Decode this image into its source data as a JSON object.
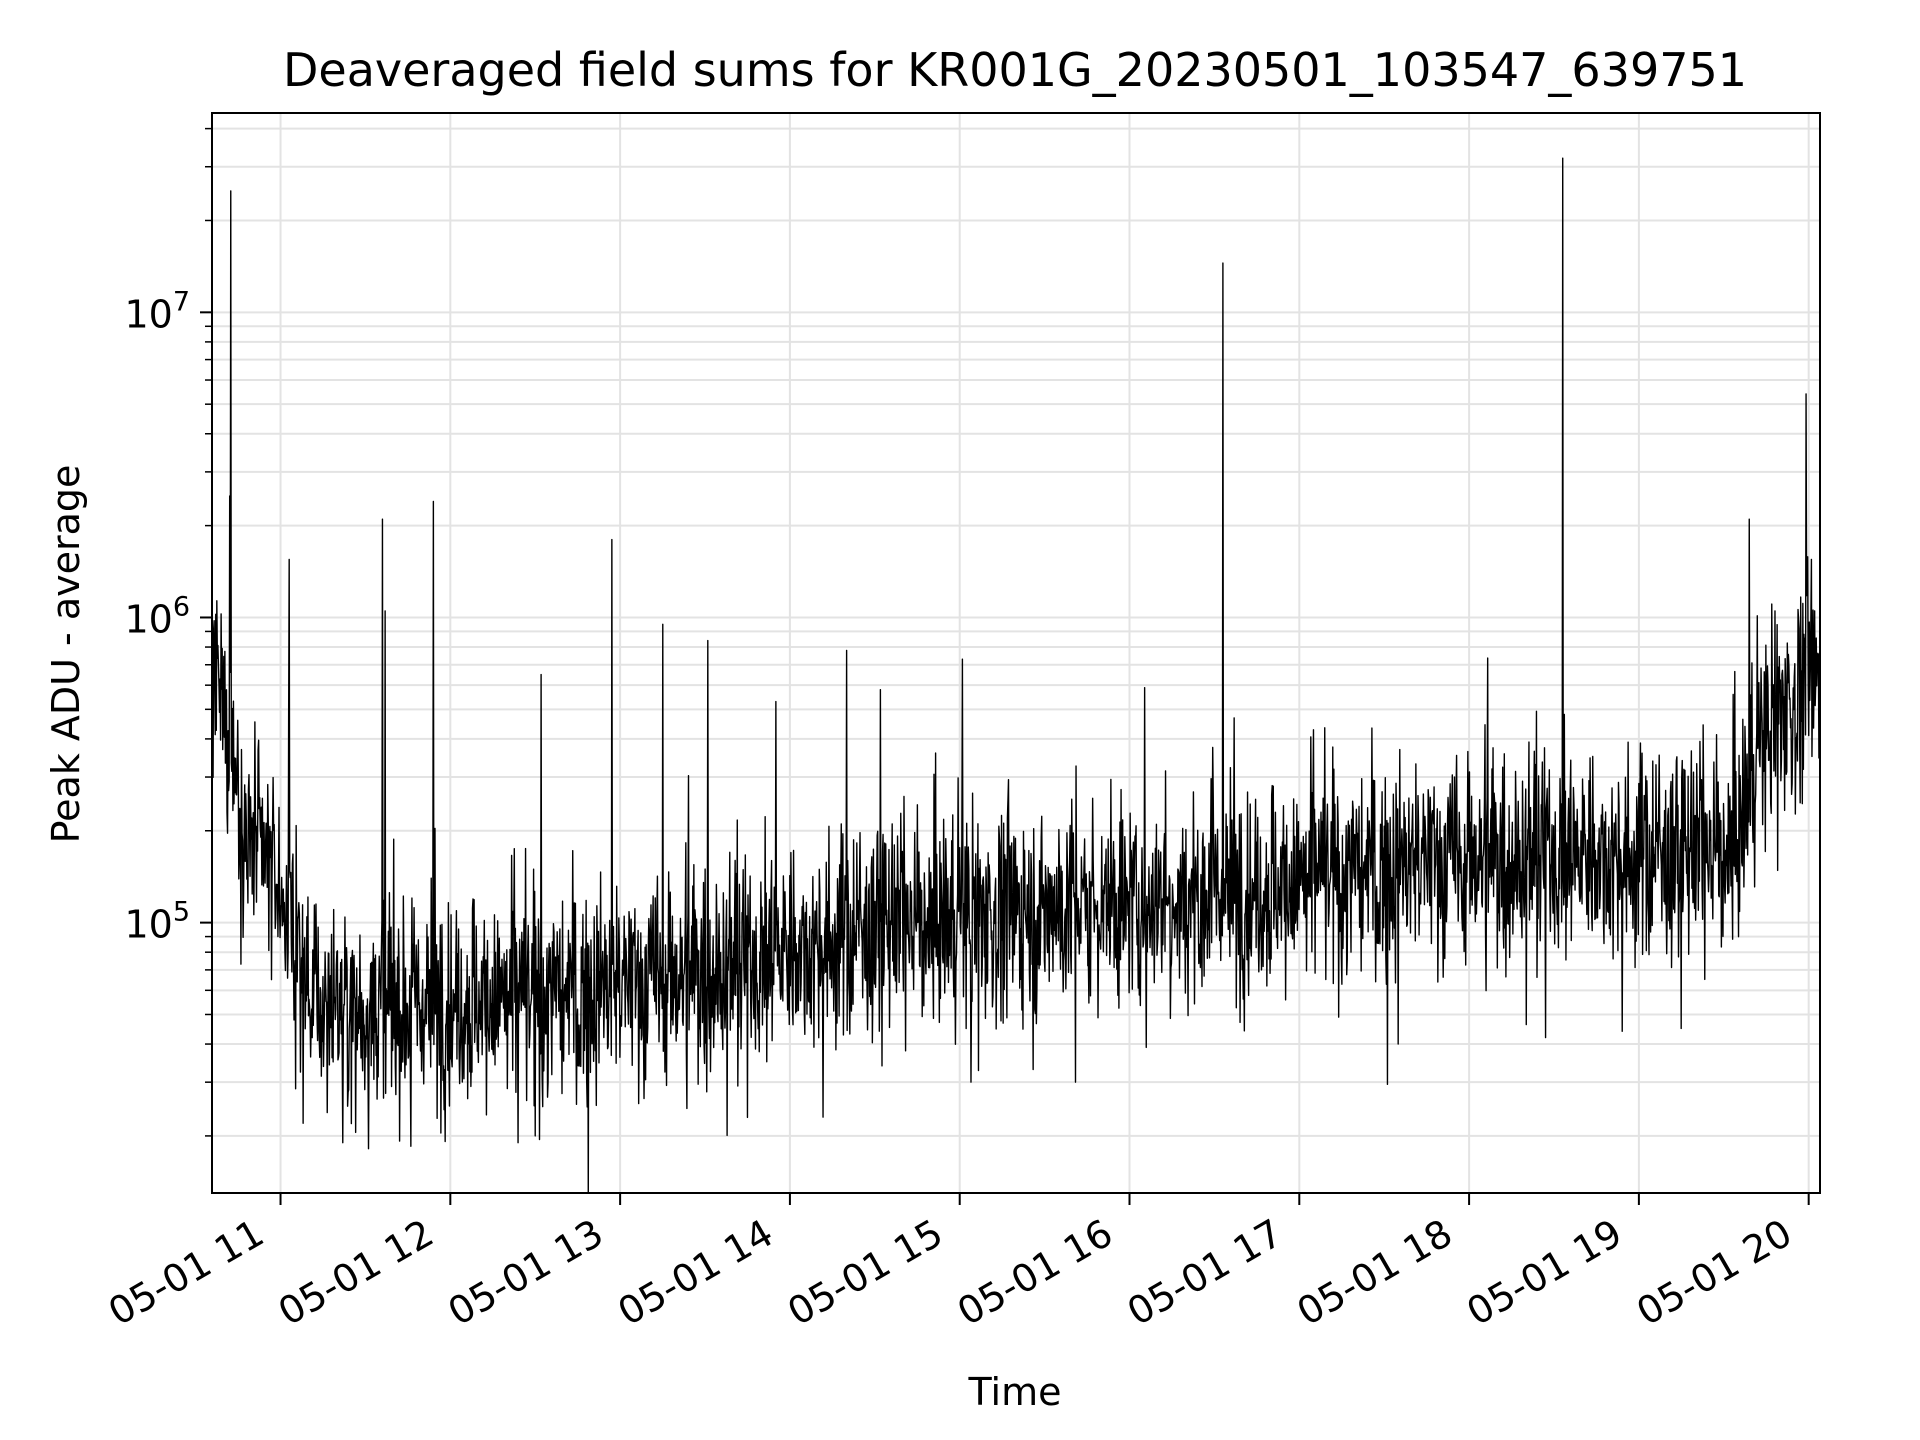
{
  "chart_data": {
    "type": "line",
    "title": "Deaveraged field sums for KR001G_20230501_103547_639751",
    "xlabel": "Time",
    "ylabel": "Peak ADU - average",
    "x_axis": {
      "type": "time",
      "range": [
        "2023-05-01 10:35:47",
        "2023-05-01 20:04:00"
      ],
      "tick_labels": [
        "05-01 11",
        "05-01 12",
        "05-01 13",
        "05-01 14",
        "05-01 15",
        "05-01 16",
        "05-01 17",
        "05-01 18",
        "05-01 19",
        "05-01 20"
      ],
      "tick_rotation_deg": 30
    },
    "y_axis": {
      "scale": "log",
      "range": [
        13000,
        45000000
      ],
      "tick_labels": [
        {
          "value": 100000,
          "base": "10",
          "exp": "5"
        },
        {
          "value": 1000000,
          "base": "10",
          "exp": "6"
        },
        {
          "value": 10000000,
          "base": "10",
          "exp": "7"
        }
      ]
    },
    "grid": true,
    "line_color": "#000000",
    "series_profile": [
      {
        "time": "2023-05-01 10:35:47",
        "y": 600000
      },
      {
        "time": "2023-05-01 10:42:00",
        "y": 420000
      },
      {
        "time": "2023-05-01 10:48:00",
        "y": 190000
      },
      {
        "time": "2023-05-01 11:00:00",
        "y": 130000
      },
      {
        "time": "2023-05-01 11:06:00",
        "y": 85000
      },
      {
        "time": "2023-05-01 11:12:00",
        "y": 55000
      },
      {
        "time": "2023-05-01 11:30:00",
        "y": 52000
      },
      {
        "time": "2023-05-01 12:00:00",
        "y": 56000
      },
      {
        "time": "2023-05-01 12:30:00",
        "y": 56000
      },
      {
        "time": "2023-05-01 13:00:00",
        "y": 62000
      },
      {
        "time": "2023-05-01 13:30:00",
        "y": 70000
      },
      {
        "time": "2023-05-01 14:00:00",
        "y": 82000
      },
      {
        "time": "2023-05-01 14:30:00",
        "y": 95000
      },
      {
        "time": "2023-05-01 15:00:00",
        "y": 105000
      },
      {
        "time": "2023-05-01 15:30:00",
        "y": 110000
      },
      {
        "time": "2023-05-01 16:00:00",
        "y": 118000
      },
      {
        "time": "2023-05-01 16:30:00",
        "y": 125000
      },
      {
        "time": "2023-05-01 17:00:00",
        "y": 135000
      },
      {
        "time": "2023-05-01 17:30:00",
        "y": 150000
      },
      {
        "time": "2023-05-01 18:00:00",
        "y": 165000
      },
      {
        "time": "2023-05-01 18:30:00",
        "y": 170000
      },
      {
        "time": "2023-05-01 19:00:00",
        "y": 165000
      },
      {
        "time": "2023-05-01 19:30:00",
        "y": 170000
      },
      {
        "time": "2023-05-01 19:36:00",
        "y": 200000
      },
      {
        "time": "2023-05-01 19:40:00",
        "y": 330000
      },
      {
        "time": "2023-05-01 19:50:00",
        "y": 500000
      },
      {
        "time": "2023-05-01 20:04:00",
        "y": 620000
      }
    ],
    "spikes": [
      {
        "time": "2023-05-01 10:42:30",
        "y": 25000000
      },
      {
        "time": "2023-05-01 10:42:00",
        "y": 2500000
      },
      {
        "time": "2023-05-01 11:03:00",
        "y": 1550000
      },
      {
        "time": "2023-05-01 11:36:00",
        "y": 2100000
      },
      {
        "time": "2023-05-01 11:37:00",
        "y": 1050000
      },
      {
        "time": "2023-05-01 11:54:00",
        "y": 2400000
      },
      {
        "time": "2023-05-01 12:32:00",
        "y": 650000
      },
      {
        "time": "2023-05-01 12:57:00",
        "y": 1800000
      },
      {
        "time": "2023-05-01 13:15:00",
        "y": 950000
      },
      {
        "time": "2023-05-01 13:31:00",
        "y": 840000
      },
      {
        "time": "2023-05-01 13:55:00",
        "y": 530000
      },
      {
        "time": "2023-05-01 14:20:00",
        "y": 780000
      },
      {
        "time": "2023-05-01 14:32:00",
        "y": 580000
      },
      {
        "time": "2023-05-01 15:01:00",
        "y": 730000
      },
      {
        "time": "2023-05-01 16:33:00",
        "y": 14500000
      },
      {
        "time": "2023-05-01 18:33:00",
        "y": 32000000
      },
      {
        "time": "2023-05-01 19:39:00",
        "y": 2100000
      },
      {
        "time": "2023-05-01 19:48:00",
        "y": 1050000
      },
      {
        "time": "2023-05-01 19:59:00",
        "y": 5400000
      },
      {
        "time": "2023-05-01 20:01:00",
        "y": 1550000
      }
    ],
    "dips": [
      {
        "time": "2023-05-01 11:08:00",
        "y": 22000
      },
      {
        "time": "2023-05-01 11:22:00",
        "y": 19000
      },
      {
        "time": "2023-05-01 11:46:00",
        "y": 18500
      },
      {
        "time": "2023-05-01 12:24:00",
        "y": 19000
      },
      {
        "time": "2023-05-01 12:30:00",
        "y": 20000
      },
      {
        "time": "2023-05-01 13:45:00",
        "y": 23000
      },
      {
        "time": "2023-05-01 15:04:00",
        "y": 30000
      },
      {
        "time": "2023-05-01 15:26:00",
        "y": 33000
      },
      {
        "time": "2023-05-01 15:41:00",
        "y": 30000
      },
      {
        "time": "2023-05-01 16:06:00",
        "y": 39000
      },
      {
        "time": "2023-05-01 17:35:00",
        "y": 40000
      },
      {
        "time": "2023-05-01 18:27:00",
        "y": 42000
      },
      {
        "time": "2023-05-01 19:15:00",
        "y": 45000
      }
    ]
  }
}
